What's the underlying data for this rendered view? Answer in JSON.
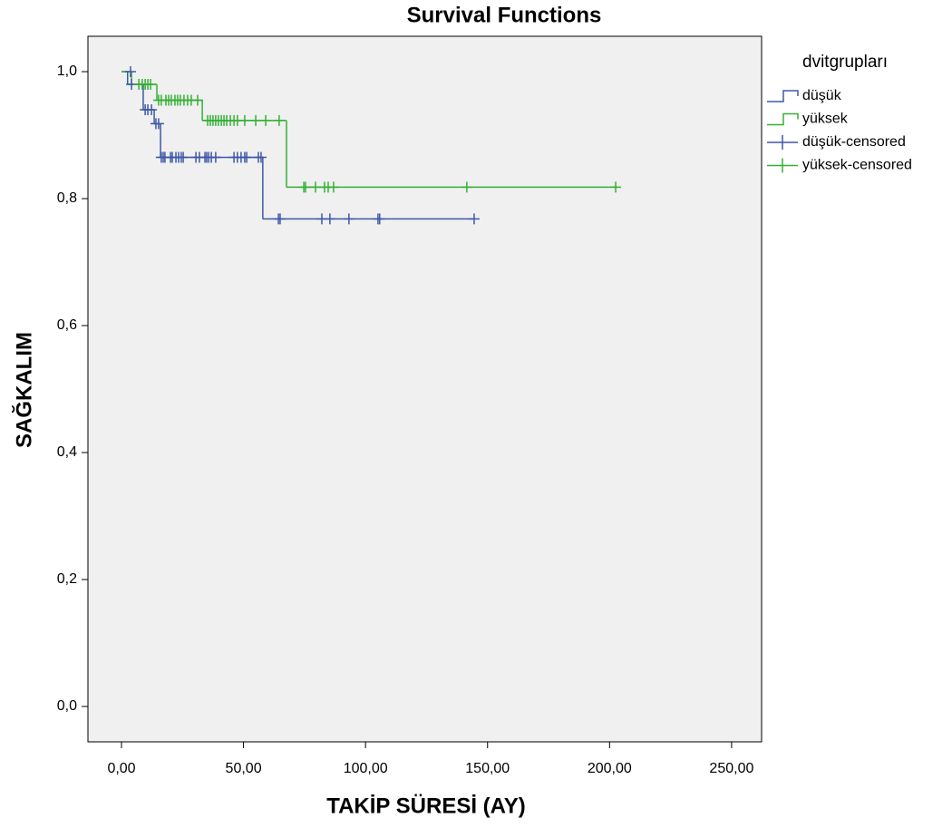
{
  "chart_data": {
    "type": "step",
    "title": "Survival Functions",
    "x_label": "TAKİP SÜRESİ (AY)",
    "y_label": "SAĞKALIM",
    "legend_title": "dvitgrupları",
    "legend": "right",
    "background": "#f0f0f0",
    "xlim": [
      -13.75,
      262.3
    ],
    "ylim": [
      -0.0557,
      1.0557
    ],
    "xticks": [
      {
        "value": 0,
        "label": "0,00"
      },
      {
        "value": 50,
        "label": "50,00"
      },
      {
        "value": 100,
        "label": "100,00"
      },
      {
        "value": 150,
        "label": "150,00"
      },
      {
        "value": 200,
        "label": "200,00"
      },
      {
        "value": 250,
        "label": "250,00"
      }
    ],
    "yticks": [
      {
        "value": 0,
        "label": "0,0"
      },
      {
        "value": 0.2,
        "label": "0,2"
      },
      {
        "value": 0.4,
        "label": "0,4"
      },
      {
        "value": 0.6,
        "label": "0,6"
      },
      {
        "value": 0.8,
        "label": "0,8"
      },
      {
        "value": 1.0,
        "label": "1,0"
      }
    ],
    "series": [
      {
        "name": "düşük",
        "color": "#3f58a8",
        "x": [
          0,
          2.5,
          8.9,
          13.4,
          16.0,
          57.9,
          144.5
        ],
        "values": [
          1.0,
          0.98,
          0.94,
          0.918,
          0.865,
          0.768,
          0.768
        ]
      },
      {
        "name": "yüksek",
        "color": "#35b035",
        "x": [
          0,
          4.1,
          14.5,
          33.1,
          67.6,
          203.2
        ],
        "values": [
          1.0,
          0.98,
          0.955,
          0.923,
          0.818,
          0.818
        ]
      },
      {
        "name": "düşük-censored",
        "color": "#3f58a8",
        "marker": "plus",
        "x": [
          3.7,
          4.1,
          9.7,
          10.8,
          12.3,
          14.1,
          15.2,
          16.3,
          17.1,
          17.8,
          20.1,
          20.8,
          22.3,
          23.4,
          24.5,
          25.3,
          30.5,
          31.9,
          34.2,
          34.9,
          35.7,
          36.8,
          38.6,
          46.1,
          47.5,
          49.0,
          50.5,
          51.3,
          56.1,
          57.2,
          64.3,
          65.0,
          82.1,
          85.4,
          93.2,
          105.1,
          105.8,
          144.5
        ],
        "values": [
          1.0,
          0.98,
          0.94,
          0.94,
          0.94,
          0.918,
          0.918,
          0.865,
          0.865,
          0.865,
          0.865,
          0.865,
          0.865,
          0.865,
          0.865,
          0.865,
          0.865,
          0.865,
          0.865,
          0.865,
          0.865,
          0.865,
          0.865,
          0.865,
          0.865,
          0.865,
          0.865,
          0.865,
          0.865,
          0.865,
          0.768,
          0.768,
          0.768,
          0.768,
          0.768,
          0.768,
          0.768,
          0.768
        ]
      },
      {
        "name": "yüksek-censored",
        "color": "#35b035",
        "marker": "plus",
        "x": [
          7.1,
          8.5,
          9.7,
          10.8,
          11.9,
          15.2,
          16.3,
          18.2,
          19.3,
          20.4,
          21.9,
          23.0,
          24.1,
          25.6,
          27.1,
          28.6,
          31.2,
          35.3,
          36.4,
          37.5,
          38.6,
          39.7,
          40.9,
          42.0,
          43.1,
          44.6,
          46.1,
          47.5,
          50.5,
          55.0,
          59.1,
          64.6,
          74.7,
          75.4,
          79.5,
          83.2,
          84.7,
          86.9,
          141.5,
          202.5
        ],
        "values": [
          0.98,
          0.98,
          0.98,
          0.98,
          0.98,
          0.955,
          0.955,
          0.955,
          0.955,
          0.955,
          0.955,
          0.955,
          0.955,
          0.955,
          0.955,
          0.955,
          0.955,
          0.923,
          0.923,
          0.923,
          0.923,
          0.923,
          0.923,
          0.923,
          0.923,
          0.923,
          0.923,
          0.923,
          0.923,
          0.923,
          0.923,
          0.923,
          0.818,
          0.818,
          0.818,
          0.818,
          0.818,
          0.818,
          0.818,
          0.818
        ]
      }
    ]
  }
}
